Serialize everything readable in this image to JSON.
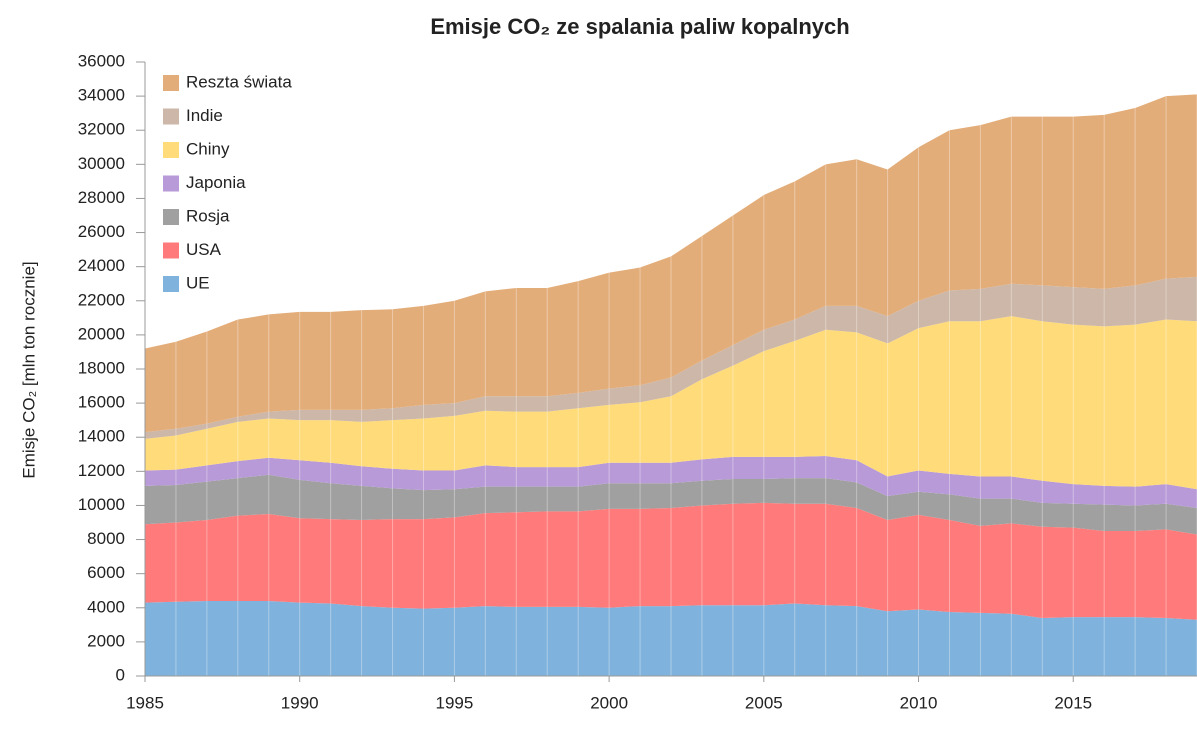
{
  "chart_data": {
    "type": "stacked_area",
    "title": "Emisje CO₂ ze spalania paliw kopalnych",
    "y_label": "Emisje CO₂ [mln ton rocznie]",
    "x": [
      1985,
      1986,
      1987,
      1988,
      1989,
      1990,
      1991,
      1992,
      1993,
      1994,
      1995,
      1996,
      1997,
      1998,
      1999,
      2000,
      2001,
      2002,
      2003,
      2004,
      2005,
      2006,
      2007,
      2008,
      2009,
      2010,
      2011,
      2012,
      2013,
      2014,
      2015,
      2016,
      2017,
      2018,
      2019
    ],
    "xlim": [
      1985,
      2019
    ],
    "xticks": [
      1985,
      1990,
      1995,
      2000,
      2005,
      2010,
      2015
    ],
    "ylim": [
      0,
      36000
    ],
    "yticks": [
      0,
      2000,
      4000,
      6000,
      8000,
      10000,
      12000,
      14000,
      16000,
      18000,
      20000,
      22000,
      24000,
      26000,
      28000,
      30000,
      32000,
      34000,
      36000
    ],
    "legend": "upper left",
    "series": [
      {
        "name": "UE",
        "color": "#7fb2dc",
        "values": [
          4300,
          4350,
          4400,
          4400,
          4400,
          4300,
          4250,
          4100,
          4000,
          3950,
          4000,
          4100,
          4050,
          4050,
          4050,
          4000,
          4100,
          4100,
          4150,
          4150,
          4150,
          4250,
          4150,
          4100,
          3800,
          3900,
          3750,
          3700,
          3650,
          3400,
          3450,
          3450,
          3450,
          3400,
          3300
        ]
      },
      {
        "name": "USA",
        "color": "#ff7b7b",
        "values": [
          4600,
          4650,
          4750,
          5000,
          5100,
          4950,
          4950,
          5050,
          5200,
          5250,
          5300,
          5450,
          5550,
          5600,
          5600,
          5800,
          5700,
          5750,
          5850,
          5950,
          6000,
          5850,
          5950,
          5750,
          5350,
          5550,
          5400,
          5100,
          5300,
          5350,
          5250,
          5050,
          5050,
          5200,
          5000
        ]
      },
      {
        "name": "Rosja",
        "color": "#a0a0a0",
        "values": [
          2250,
          2200,
          2250,
          2200,
          2300,
          2250,
          2100,
          2000,
          1800,
          1700,
          1650,
          1550,
          1500,
          1450,
          1450,
          1500,
          1500,
          1450,
          1450,
          1450,
          1400,
          1500,
          1500,
          1500,
          1400,
          1350,
          1500,
          1600,
          1450,
          1400,
          1400,
          1550,
          1500,
          1500,
          1550
        ]
      },
      {
        "name": "Japonia",
        "color": "#b89ad8",
        "values": [
          900,
          900,
          950,
          1000,
          1000,
          1150,
          1200,
          1150,
          1150,
          1150,
          1100,
          1250,
          1150,
          1150,
          1150,
          1200,
          1200,
          1200,
          1250,
          1300,
          1300,
          1250,
          1300,
          1300,
          1150,
          1250,
          1200,
          1300,
          1300,
          1300,
          1150,
          1100,
          1100,
          1150,
          1100
        ]
      },
      {
        "name": "Chiny",
        "color": "#ffdb7a",
        "values": [
          1850,
          2000,
          2150,
          2300,
          2300,
          2350,
          2500,
          2600,
          2850,
          3050,
          3200,
          3200,
          3250,
          3250,
          3450,
          3400,
          3550,
          3900,
          4700,
          5350,
          6200,
          6800,
          7400,
          7500,
          7800,
          8350,
          8950,
          9100,
          9400,
          9350,
          9350,
          9350,
          9500,
          9650,
          9850
        ]
      },
      {
        "name": "Indie",
        "color": "#cdb7a8",
        "values": [
          400,
          400,
          300,
          300,
          400,
          600,
          600,
          700,
          700,
          800,
          750,
          850,
          900,
          900,
          900,
          950,
          1000,
          1100,
          1100,
          1200,
          1250,
          1250,
          1400,
          1550,
          1600,
          1600,
          1800,
          1900,
          1900,
          2100,
          2200,
          2200,
          2300,
          2400,
          2600
        ]
      },
      {
        "name": "Reszta świata",
        "color": "#e3ad7a",
        "values": [
          4900,
          5100,
          5400,
          5700,
          5700,
          5750,
          5750,
          5850,
          5800,
          5800,
          6000,
          6150,
          6350,
          6350,
          6550,
          6800,
          6900,
          7100,
          7300,
          7600,
          7900,
          8100,
          8300,
          8600,
          8600,
          9000,
          9400,
          9600,
          9800,
          9900,
          10000,
          10200,
          10400,
          10700,
          10700
        ]
      }
    ]
  }
}
